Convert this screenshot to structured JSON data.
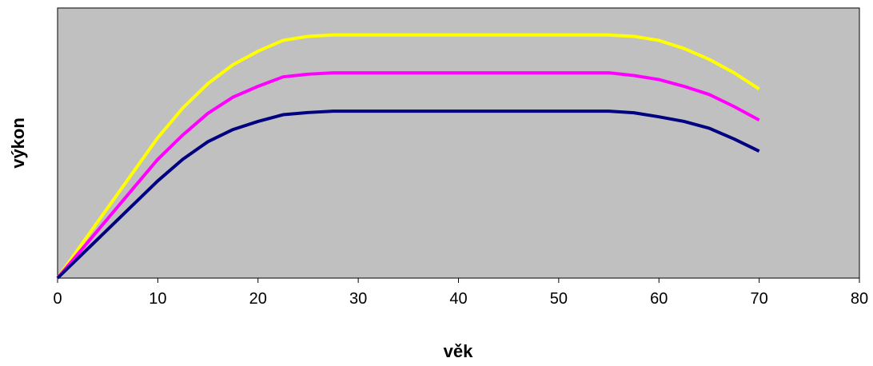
{
  "chart_data": {
    "type": "line",
    "title": "",
    "xlabel": "věk",
    "ylabel": "výkon",
    "xlim": [
      0,
      80
    ],
    "x_ticks": [
      0,
      10,
      20,
      30,
      40,
      50,
      60,
      70,
      80
    ],
    "y_ticks_shown": false,
    "grid": false,
    "legend": "none",
    "plot_background": "#C0C0C0",
    "x": [
      0,
      2.5,
      5,
      7.5,
      10,
      12.5,
      15,
      17.5,
      20,
      22.5,
      25,
      27.5,
      30,
      35,
      40,
      45,
      50,
      55,
      57.5,
      60,
      62.5,
      65,
      67.5,
      70
    ],
    "series": [
      {
        "color": "#FFFF00",
        "values": [
          0,
          13,
          26,
          39,
          52,
          63,
          72,
          79,
          84,
          88,
          89.5,
          90,
          90,
          90,
          90,
          90,
          90,
          90,
          89.5,
          88,
          85,
          81,
          76,
          70
        ]
      },
      {
        "color": "#FF00FF",
        "values": [
          0,
          11,
          22,
          33,
          44,
          53,
          61,
          67,
          71,
          74.5,
          75.5,
          76,
          76,
          76,
          76,
          76,
          76,
          76,
          75,
          73.5,
          71,
          68,
          63.5,
          58.5
        ]
      },
      {
        "color": "#000080",
        "values": [
          0,
          9,
          18,
          27,
          36,
          44,
          50.5,
          55,
          58,
          60.5,
          61.3,
          61.8,
          61.8,
          61.8,
          61.8,
          61.8,
          61.8,
          61.8,
          61.2,
          59.7,
          58,
          55.5,
          51.5,
          47
        ]
      }
    ]
  }
}
